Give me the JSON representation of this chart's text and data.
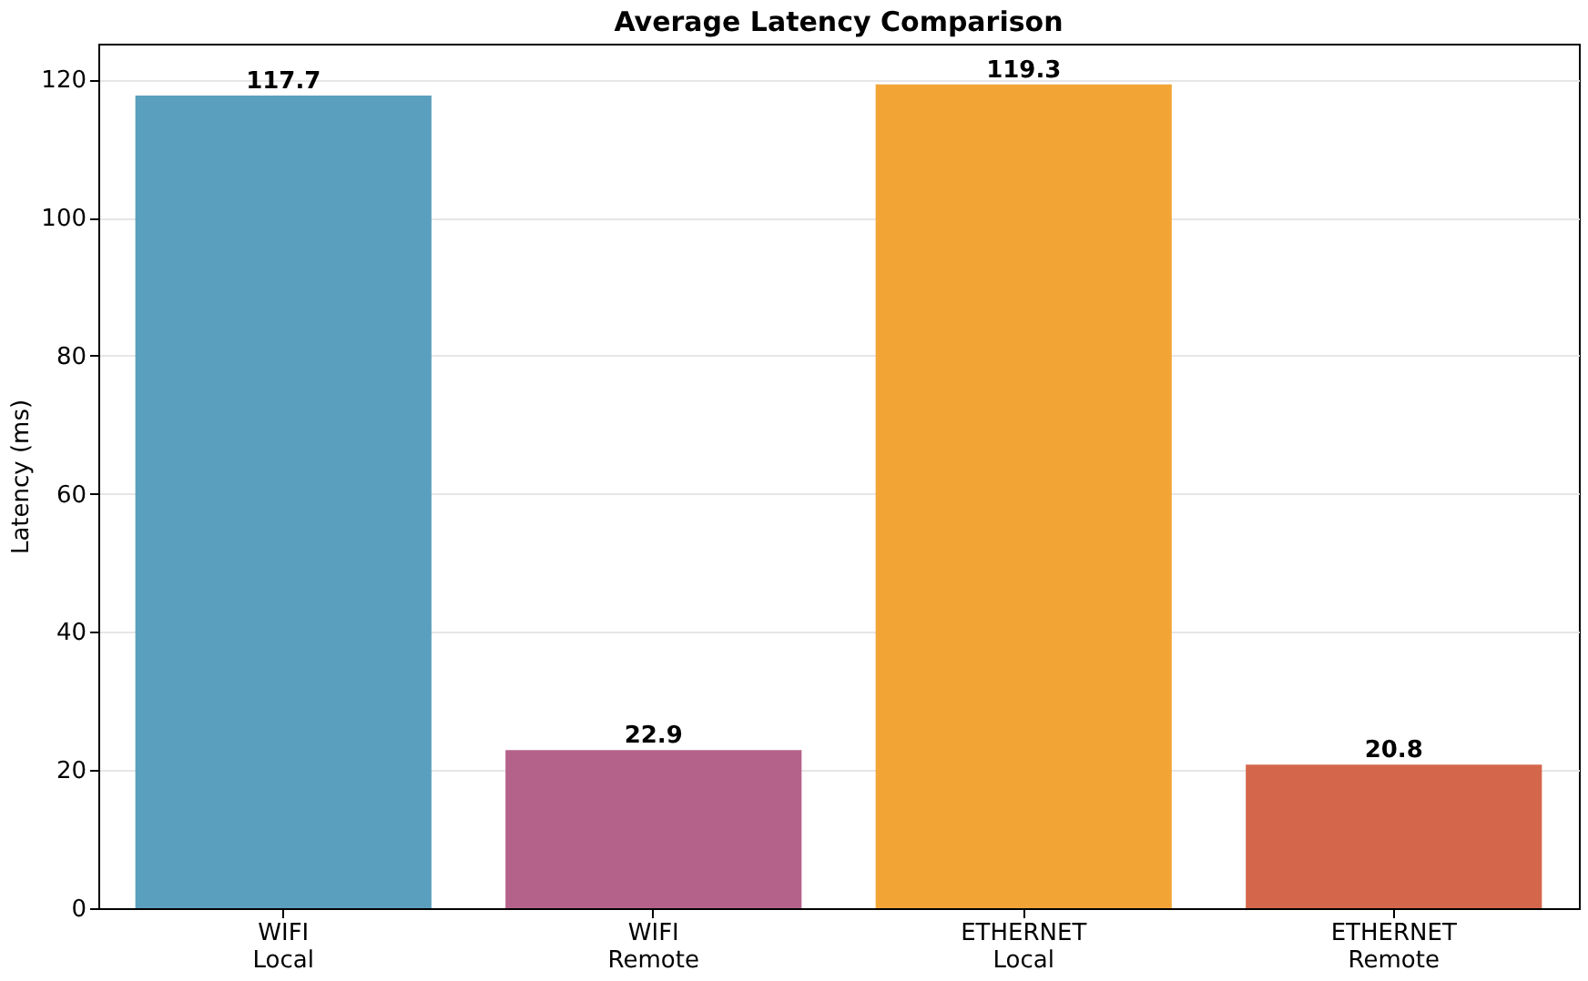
{
  "chart_data": {
    "type": "bar",
    "title": "Average Latency Comparison",
    "ylabel": "Latency (ms)",
    "categories": [
      "WIFI\nLocal",
      "WIFI\nRemote",
      "ETHERNET\nLocal",
      "ETHERNET\nRemote"
    ],
    "values": [
      117.7,
      22.9,
      119.3,
      20.8
    ],
    "colors": [
      "#5a9fbd",
      "#b5628b",
      "#f2a535",
      "#d4674b"
    ],
    "ylim": [
      0,
      125.2
    ],
    "yticks": [
      0,
      20,
      40,
      60,
      80,
      100,
      120
    ],
    "grid": "y",
    "data_labels": true
  }
}
